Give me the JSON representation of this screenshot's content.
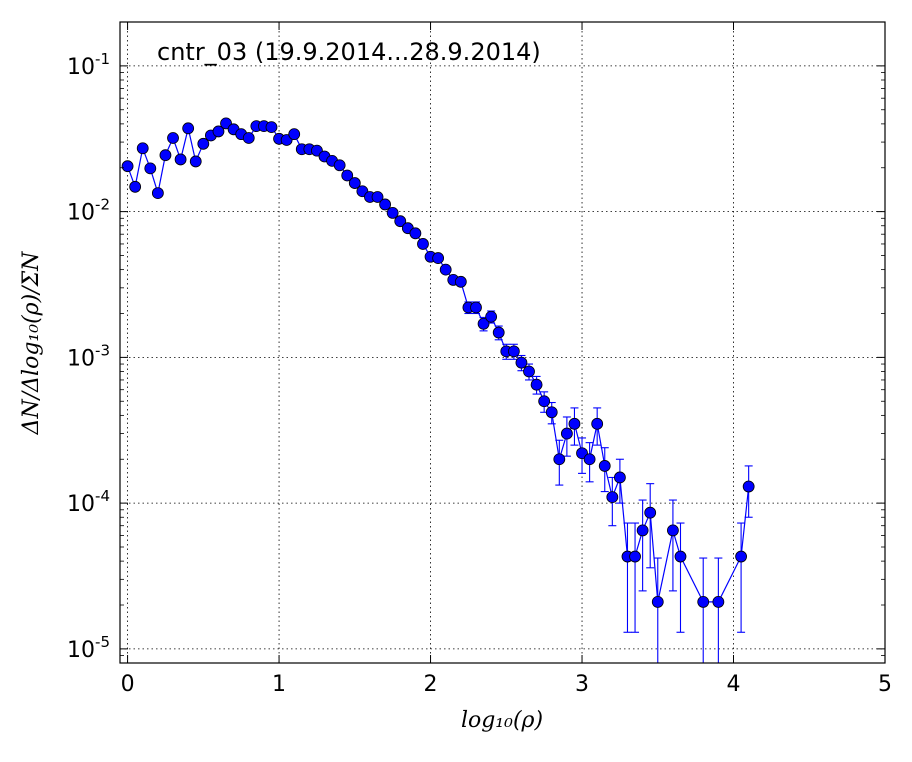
{
  "chart_data": {
    "type": "scatter",
    "title": "cntr_03 (19.9.2014...28.9.2014)",
    "xlabel": "log₁₀(ρ)",
    "ylabel": "ΔN/Δlog₁₀(ρ)/ΣN",
    "xlim": [
      -0.05,
      5
    ],
    "ylim": [
      8e-06,
      0.2
    ],
    "yscale": "log",
    "grid": true,
    "x_ticks": [
      {
        "value": 0,
        "label": "0"
      },
      {
        "value": 1,
        "label": "1"
      },
      {
        "value": 2,
        "label": "2"
      },
      {
        "value": 3,
        "label": "3"
      },
      {
        "value": 4,
        "label": "4"
      },
      {
        "value": 5,
        "label": "5"
      }
    ],
    "y_ticks": [
      {
        "value": 0.1,
        "base": "10",
        "exp": "-1"
      },
      {
        "value": 0.01,
        "base": "10",
        "exp": "-2"
      },
      {
        "value": 0.001,
        "base": "10",
        "exp": "-3"
      },
      {
        "value": 0.0001,
        "base": "10",
        "exp": "-4"
      },
      {
        "value": 1e-05,
        "base": "10",
        "exp": "-5"
      }
    ],
    "colors": {
      "marker": "#0000ff",
      "line": "#0000ff",
      "marker_edge": "#000000"
    },
    "series": [
      {
        "x": [
          0.0,
          0.05,
          0.1,
          0.15,
          0.2,
          0.25,
          0.3,
          0.35,
          0.4,
          0.45,
          0.5,
          0.55,
          0.6,
          0.65,
          0.7,
          0.75,
          0.8,
          0.85,
          0.9,
          0.95,
          1.0,
          1.05,
          1.1,
          1.15,
          1.2,
          1.25,
          1.3,
          1.35,
          1.4,
          1.45,
          1.5,
          1.55,
          1.6,
          1.65,
          1.7,
          1.75,
          1.8,
          1.85,
          1.9,
          1.95,
          2.0,
          2.05,
          2.1,
          2.15,
          2.2,
          2.25,
          2.3,
          2.35,
          2.4,
          2.45,
          2.5,
          2.55,
          2.6,
          2.65,
          2.7,
          2.75,
          2.8,
          2.85,
          2.9,
          2.95,
          3.0,
          3.05,
          3.1,
          3.15,
          3.2,
          3.25,
          3.3,
          3.35,
          3.4,
          3.45,
          3.5,
          3.6,
          3.65,
          3.8,
          3.9,
          4.05,
          4.1
        ],
        "y": [
          0.0205,
          0.0148,
          0.0272,
          0.0198,
          0.0134,
          0.0244,
          0.032,
          0.0228,
          0.0373,
          0.0221,
          0.0292,
          0.0333,
          0.0355,
          0.0403,
          0.0367,
          0.034,
          0.032,
          0.0386,
          0.0386,
          0.038,
          0.0316,
          0.031,
          0.034,
          0.0268,
          0.0268,
          0.0262,
          0.0239,
          0.0223,
          0.0208,
          0.0177,
          0.0157,
          0.0138,
          0.0126,
          0.0126,
          0.0112,
          0.0098,
          0.0086,
          0.0077,
          0.0071,
          0.006,
          0.0049,
          0.0048,
          0.004,
          0.0034,
          0.0033,
          0.0022,
          0.0022,
          0.0017,
          0.0019,
          0.00148,
          0.0011,
          0.0011,
          0.00092,
          0.0008,
          0.00065,
          0.0005,
          0.00042,
          0.0002,
          0.0003,
          0.00035,
          0.00022,
          0.0002,
          0.00035,
          0.00018,
          0.00011,
          0.00015,
          4.3e-05,
          4.3e-05,
          6.5e-05,
          8.6e-05,
          2.1e-05,
          6.5e-05,
          4.3e-05,
          2.1e-05,
          2.1e-05,
          4.3e-05,
          0.00013
        ],
        "yerr_low": [
          0,
          0,
          0,
          0,
          0,
          0,
          0,
          0,
          0,
          0,
          0,
          0,
          0,
          0,
          0,
          0,
          0,
          0,
          0,
          0,
          0,
          0,
          0,
          0,
          0,
          0,
          0,
          0,
          0,
          0,
          0,
          0,
          0,
          0,
          0,
          0,
          0,
          0,
          0,
          0,
          0,
          0,
          0,
          0,
          0.0002,
          0.0002,
          0.0002,
          0.00018,
          0.00018,
          0.00016,
          0.00013,
          0.00013,
          0.00011,
          0.0001,
          9e-05,
          8e-05,
          7e-05,
          6.7e-05,
          9e-05,
          0.0001,
          6e-05,
          6e-05,
          0.0001,
          6e-05,
          4e-05,
          5e-05,
          3e-05,
          3e-05,
          4e-05,
          5e-05,
          1.8e-05,
          4e-05,
          3e-05,
          1.8e-05,
          1.8e-05,
          3e-05,
          5e-05
        ],
        "yerr_high": [
          0,
          0,
          0,
          0,
          0,
          0,
          0,
          0,
          0,
          0,
          0,
          0,
          0,
          0,
          0,
          0,
          0,
          0,
          0,
          0,
          0,
          0,
          0,
          0,
          0,
          0,
          0,
          0,
          0,
          0,
          0,
          0,
          0,
          0,
          0,
          0,
          0,
          0,
          0,
          0,
          0,
          0,
          0,
          0,
          0.0002,
          0.0002,
          0.0002,
          0.00018,
          0.00018,
          0.00016,
          0.00013,
          0.00013,
          0.00011,
          0.0001,
          9e-05,
          8e-05,
          7e-05,
          7e-05,
          9e-05,
          0.0001,
          6e-05,
          6e-05,
          0.0001,
          6e-05,
          4e-05,
          5e-05,
          3e-05,
          3e-05,
          4e-05,
          5e-05,
          2.1e-05,
          4e-05,
          3e-05,
          2.1e-05,
          2.1e-05,
          3e-05,
          5e-05
        ]
      }
    ]
  }
}
